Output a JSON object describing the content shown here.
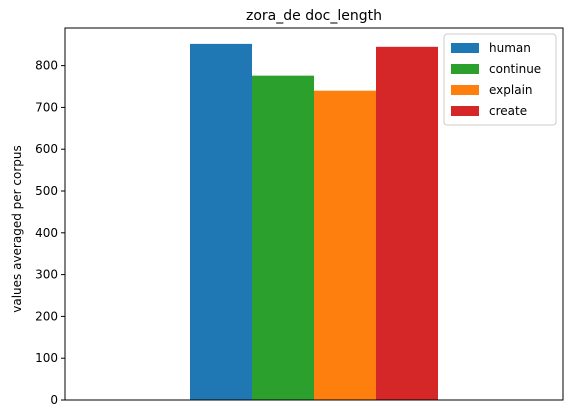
{
  "chart_data": {
    "type": "bar",
    "title": "zora_de doc_length",
    "xlabel": "",
    "ylabel": "values averaged per corpus",
    "ylim": [
      0,
      890
    ],
    "yticks": [
      "0",
      "100",
      "200",
      "300",
      "400",
      "500",
      "600",
      "700",
      "800"
    ],
    "legend_position": "top-right",
    "grid": false,
    "series": [
      {
        "name": "human",
        "value": 852,
        "color": "#1f77b4"
      },
      {
        "name": "continue",
        "value": 776,
        "color": "#2ca02c"
      },
      {
        "name": "explain",
        "value": 740,
        "color": "#ff7f0e"
      },
      {
        "name": "create",
        "value": 845,
        "color": "#d62728"
      }
    ]
  }
}
